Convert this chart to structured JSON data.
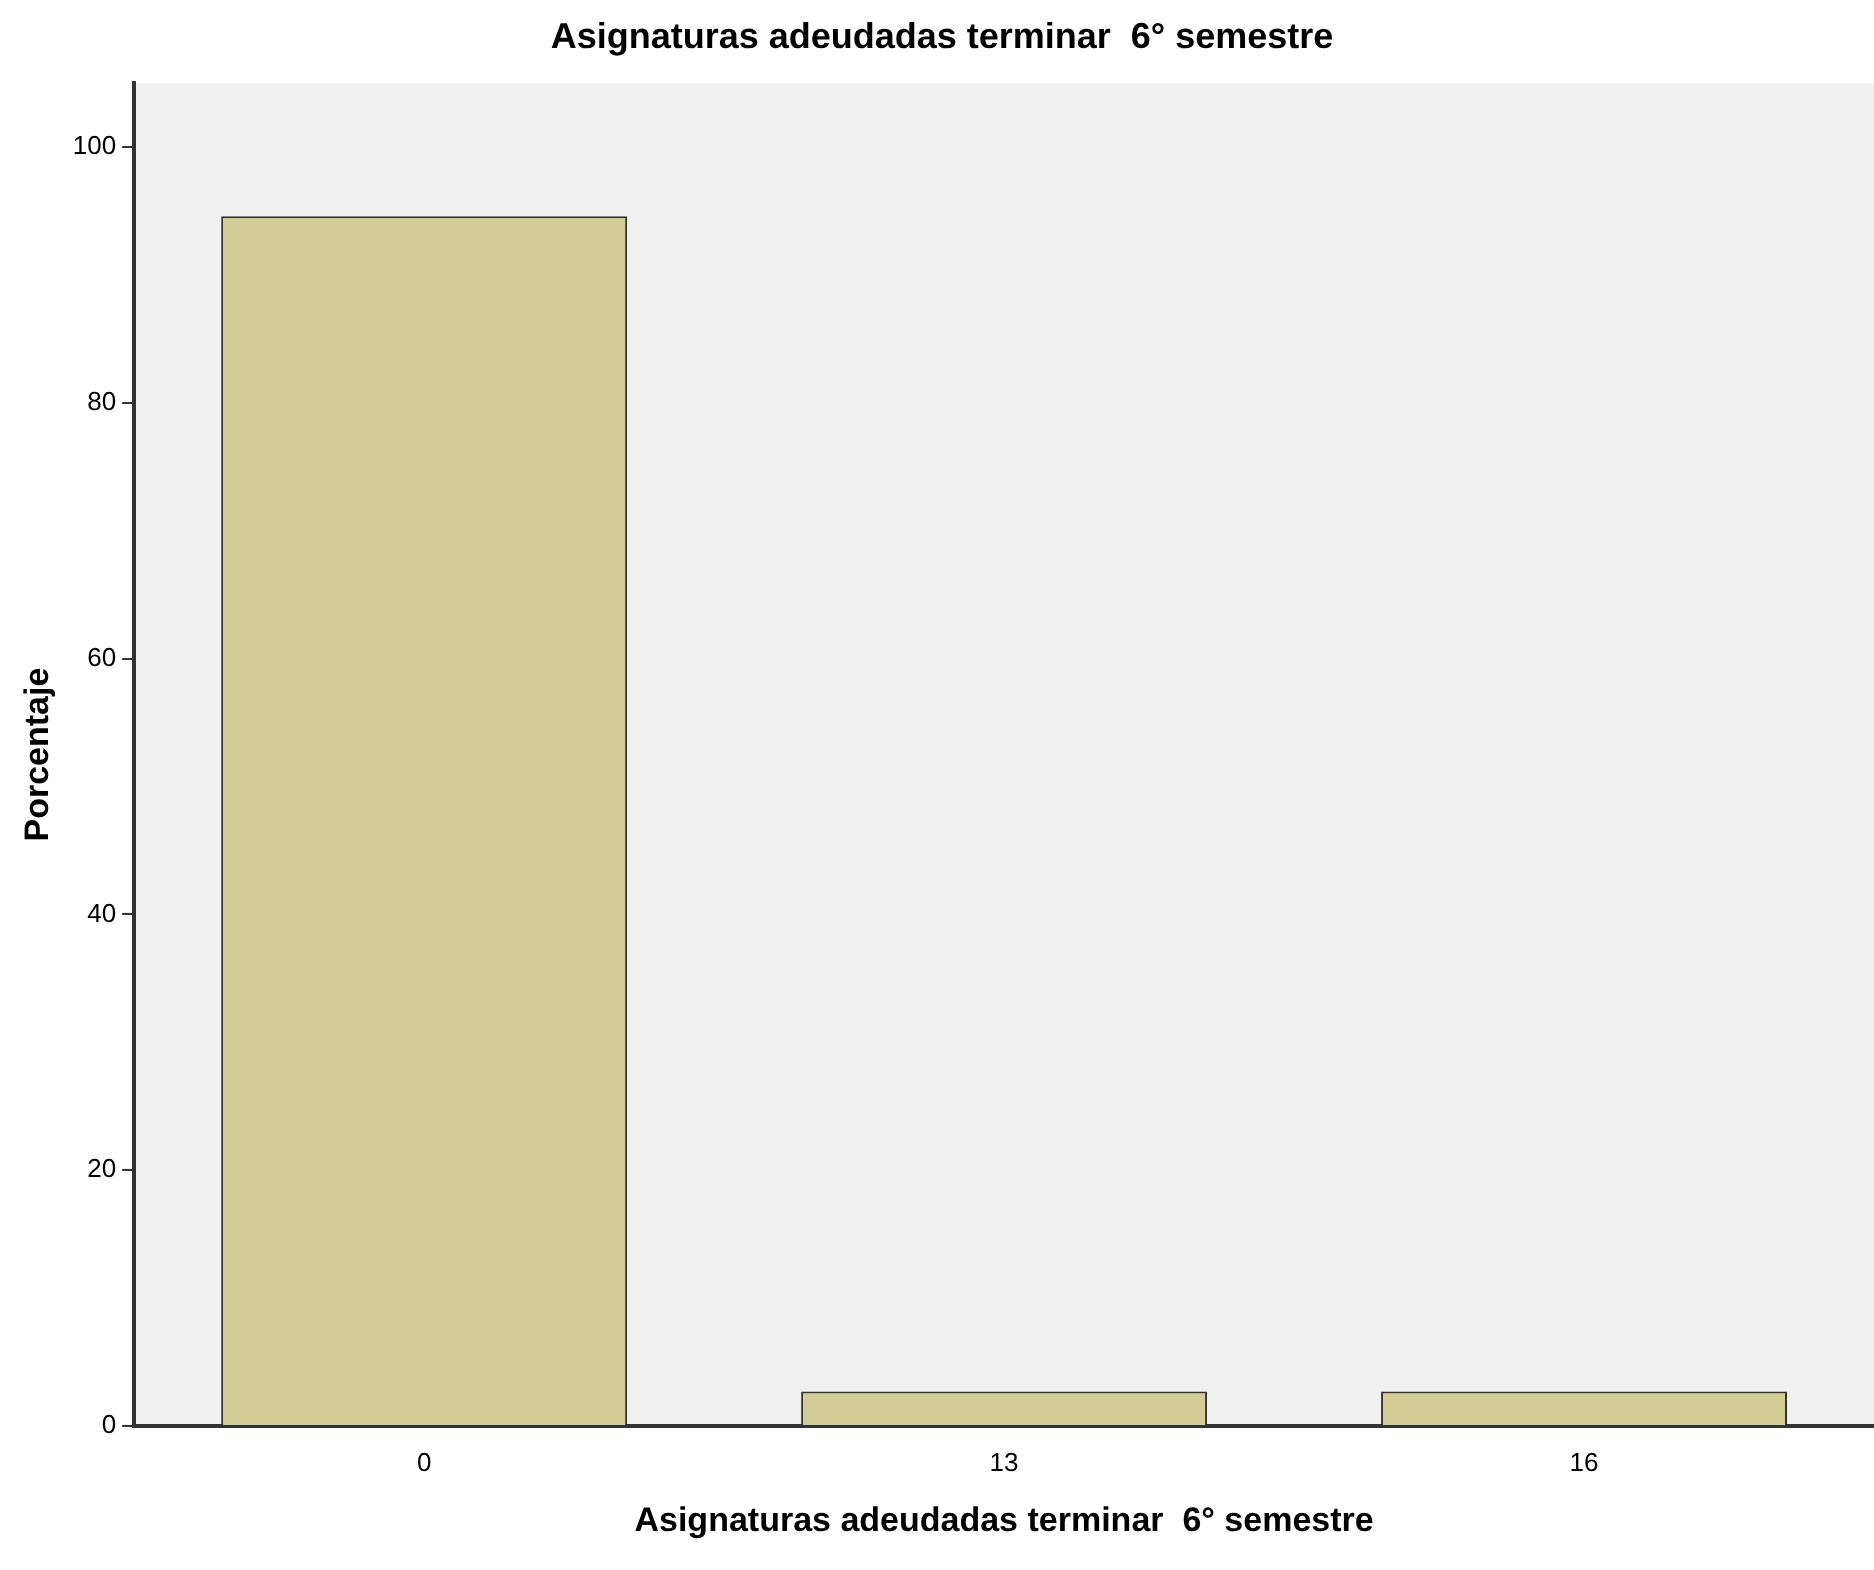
{
  "chart_data": {
    "type": "bar",
    "title": "Asignaturas adeudadas terminar  6° semestre",
    "xlabel": "Asignaturas adeudadas terminar  6° semestre",
    "ylabel": "Porcentaje",
    "categories": [
      "0",
      "13",
      "16"
    ],
    "values": [
      94.6,
      2.7,
      2.7
    ],
    "color": "#d2cd96",
    "ylim": [
      0,
      105
    ],
    "yticks": [
      0,
      20,
      40,
      60,
      80,
      100
    ],
    "grid": false,
    "legend": false
  }
}
